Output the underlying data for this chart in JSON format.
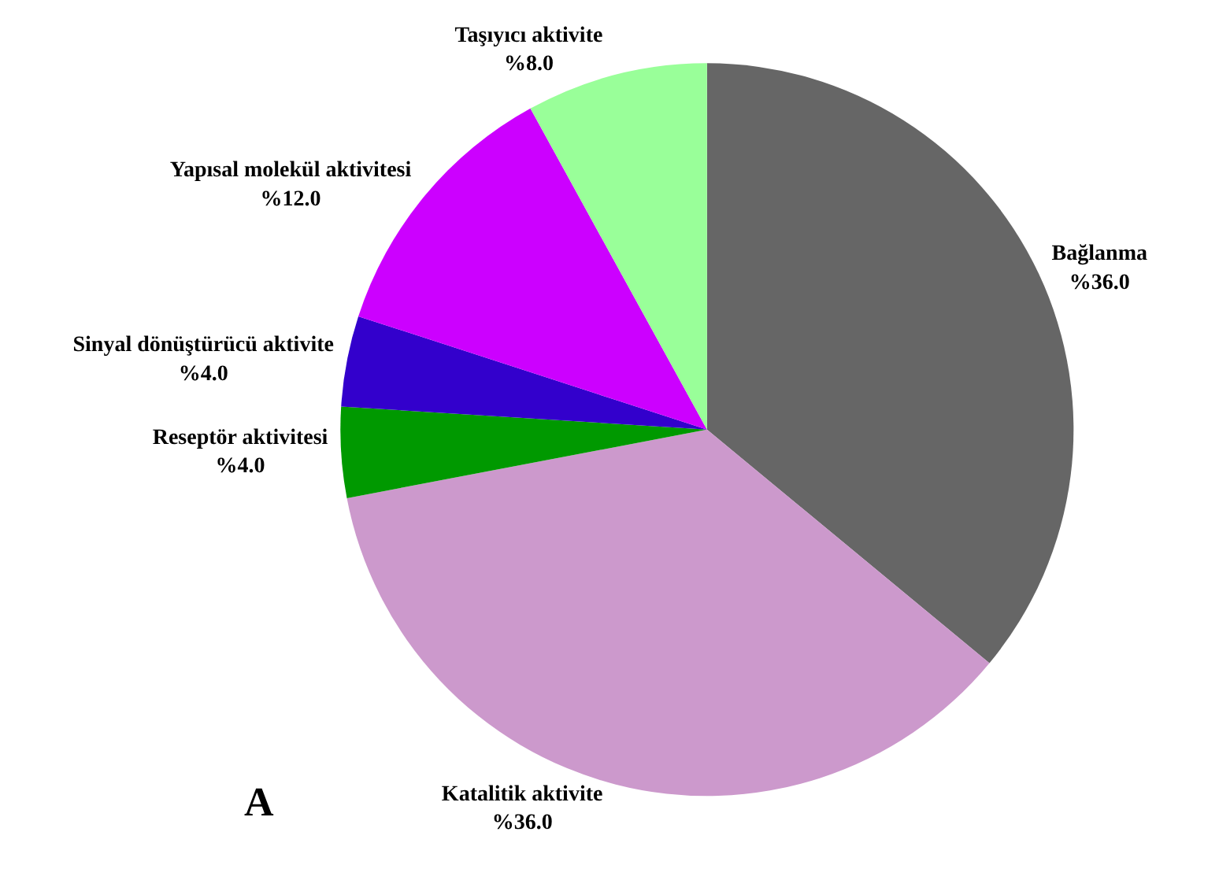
{
  "chart_data": {
    "type": "pie",
    "categories": [
      "Bağlanma",
      "Katalitik aktivite",
      "Reseptör aktivitesi",
      "Sinyal dönüştürücü aktivite",
      "Yapısal molekül aktivitesi",
      "Taşıyıcı aktivite"
    ],
    "values": [
      36.0,
      36.0,
      4.0,
      4.0,
      12.0,
      8.0
    ],
    "value_labels": [
      "%36.0",
      "%36.0",
      "%4.0",
      "%4.0",
      "%12.0",
      "%8.0"
    ],
    "colors": [
      "#666666",
      "#cc99cc",
      "#009900",
      "#3300cc",
      "#cc00ff",
      "#99ff99"
    ],
    "annotations": [
      "A"
    ],
    "legend": false
  }
}
